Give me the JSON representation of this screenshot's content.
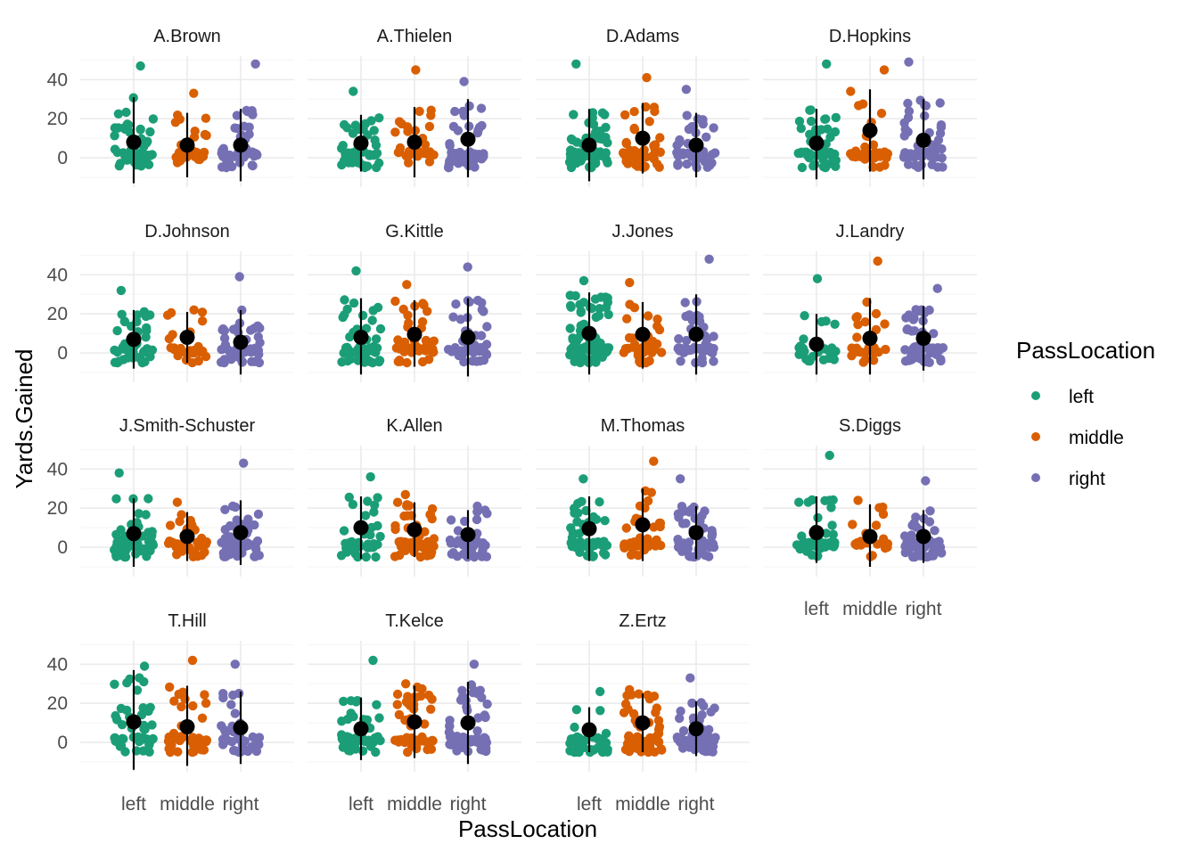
{
  "colors": {
    "left": "#1b9e77",
    "middle": "#d95f02",
    "right": "#7570b3",
    "summary": "#000000",
    "grid_major": "#ebebeb",
    "grid_minor": "#f5f5f5"
  },
  "chart_data": {
    "type": "scatter",
    "subtype": "faceted jittered strip plot with mean point and range line",
    "xlabel": "PassLocation",
    "ylabel": "Yards.Gained",
    "categories": [
      "left",
      "middle",
      "right"
    ],
    "ylim": [
      -15,
      52
    ],
    "yticks": [
      0,
      20,
      40
    ],
    "grid": true,
    "legend": {
      "title": "PassLocation",
      "placement": "right",
      "entries": [
        "left",
        "middle",
        "right"
      ]
    },
    "facets": [
      {
        "player": "A.Brown",
        "series": [
          {
            "location": "left",
            "mean": 8,
            "min": -13,
            "max": 31,
            "n": 55,
            "points_max": 47
          },
          {
            "location": "middle",
            "mean": 6.5,
            "min": -10,
            "max": 23,
            "n": 30,
            "points_max": 33
          },
          {
            "location": "right",
            "mean": 6.5,
            "min": -12,
            "max": 25,
            "n": 50,
            "points_max": 48
          }
        ]
      },
      {
        "player": "A.Thielen",
        "series": [
          {
            "location": "left",
            "mean": 7.5,
            "min": -7,
            "max": 22,
            "n": 55,
            "points_max": 34
          },
          {
            "location": "middle",
            "mean": 8,
            "min": -10,
            "max": 26,
            "n": 30,
            "points_max": 45
          },
          {
            "location": "right",
            "mean": 9.5,
            "min": -10,
            "max": 30,
            "n": 55,
            "points_max": 39
          }
        ]
      },
      {
        "player": "D.Adams",
        "series": [
          {
            "location": "left",
            "mean": 6.5,
            "min": -12,
            "max": 25,
            "n": 70,
            "points_max": 48
          },
          {
            "location": "middle",
            "mean": 10,
            "min": -8,
            "max": 28,
            "n": 40,
            "points_max": 41
          },
          {
            "location": "right",
            "mean": 6.5,
            "min": -10,
            "max": 23,
            "n": 45,
            "points_max": 35
          }
        ]
      },
      {
        "player": "D.Hopkins",
        "series": [
          {
            "location": "left",
            "mean": 7.5,
            "min": -11,
            "max": 25,
            "n": 50,
            "points_max": 48
          },
          {
            "location": "middle",
            "mean": 14,
            "min": -7,
            "max": 35,
            "n": 40,
            "points_max": 45
          },
          {
            "location": "right",
            "mean": 9,
            "min": -11,
            "max": 30,
            "n": 60,
            "points_max": 49
          }
        ]
      },
      {
        "player": "D.Johnson",
        "series": [
          {
            "location": "left",
            "mean": 7,
            "min": -8,
            "max": 22,
            "n": 50,
            "points_max": 32
          },
          {
            "location": "middle",
            "mean": 8,
            "min": -5,
            "max": 21,
            "n": 25,
            "points_max": 22
          },
          {
            "location": "right",
            "mean": 5.5,
            "min": -11,
            "max": 22,
            "n": 55,
            "points_max": 39
          }
        ]
      },
      {
        "player": "G.Kittle",
        "series": [
          {
            "location": "left",
            "mean": 8,
            "min": -11,
            "max": 28,
            "n": 50,
            "points_max": 42
          },
          {
            "location": "middle",
            "mean": 9.5,
            "min": -7,
            "max": 27,
            "n": 40,
            "points_max": 35
          },
          {
            "location": "right",
            "mean": 8,
            "min": -12,
            "max": 28,
            "n": 50,
            "points_max": 44
          }
        ]
      },
      {
        "player": "J.Jones",
        "series": [
          {
            "location": "left",
            "mean": 10,
            "min": -11,
            "max": 31,
            "n": 70,
            "points_max": 37
          },
          {
            "location": "middle",
            "mean": 9.5,
            "min": -8,
            "max": 26,
            "n": 45,
            "points_max": 36
          },
          {
            "location": "right",
            "mean": 9.5,
            "min": -11,
            "max": 30,
            "n": 45,
            "points_max": 48
          }
        ]
      },
      {
        "player": "J.Landry",
        "series": [
          {
            "location": "left",
            "mean": 4.5,
            "min": -11,
            "max": 20,
            "n": 30,
            "points_max": 38
          },
          {
            "location": "middle",
            "mean": 7.5,
            "min": -11,
            "max": 28,
            "n": 30,
            "points_max": 47
          },
          {
            "location": "right",
            "mean": 7.5,
            "min": -9,
            "max": 24,
            "n": 55,
            "points_max": 33
          }
        ]
      },
      {
        "player": "J.Smith-Schuster",
        "series": [
          {
            "location": "left",
            "mean": 7,
            "min": -10,
            "max": 25,
            "n": 50,
            "points_max": 38
          },
          {
            "location": "middle",
            "mean": 5.5,
            "min": -7,
            "max": 18,
            "n": 45,
            "points_max": 23
          },
          {
            "location": "right",
            "mean": 7.5,
            "min": -9,
            "max": 24,
            "n": 60,
            "points_max": 43
          }
        ]
      },
      {
        "player": "K.Allen",
        "series": [
          {
            "location": "left",
            "mean": 10,
            "min": -6,
            "max": 26,
            "n": 40,
            "points_max": 36
          },
          {
            "location": "middle",
            "mean": 9,
            "min": -5,
            "max": 23,
            "n": 55,
            "points_max": 27
          },
          {
            "location": "right",
            "mean": 6.5,
            "min": -6,
            "max": 19,
            "n": 40,
            "points_max": 21
          }
        ]
      },
      {
        "player": "M.Thomas",
        "series": [
          {
            "location": "left",
            "mean": 9.5,
            "min": -7,
            "max": 26,
            "n": 55,
            "points_max": 35
          },
          {
            "location": "middle",
            "mean": 11.5,
            "min": -7,
            "max": 30,
            "n": 40,
            "points_max": 44
          },
          {
            "location": "right",
            "mean": 7.5,
            "min": -6,
            "max": 21,
            "n": 60,
            "points_max": 35
          }
        ]
      },
      {
        "player": "S.Diggs",
        "series": [
          {
            "location": "left",
            "mean": 7.5,
            "min": -8,
            "max": 26,
            "n": 45,
            "points_max": 47
          },
          {
            "location": "middle",
            "mean": 5.5,
            "min": -10,
            "max": 22,
            "n": 20,
            "points_max": 24
          },
          {
            "location": "right",
            "mean": 5.5,
            "min": -8,
            "max": 19,
            "n": 55,
            "points_max": 34
          }
        ]
      },
      {
        "player": "T.Hill",
        "series": [
          {
            "location": "left",
            "mean": 10.5,
            "min": -14,
            "max": 37,
            "n": 50,
            "points_max": 39
          },
          {
            "location": "middle",
            "mean": 8,
            "min": -12,
            "max": 29,
            "n": 40,
            "points_max": 42
          },
          {
            "location": "right",
            "mean": 7.5,
            "min": -11,
            "max": 26,
            "n": 40,
            "points_max": 40
          }
        ]
      },
      {
        "player": "T.Kelce",
        "series": [
          {
            "location": "left",
            "mean": 7,
            "min": -9,
            "max": 23,
            "n": 50,
            "points_max": 42
          },
          {
            "location": "middle",
            "mean": 10.5,
            "min": -8,
            "max": 29,
            "n": 50,
            "points_max": 30
          },
          {
            "location": "right",
            "mean": 10,
            "min": -11,
            "max": 31,
            "n": 65,
            "points_max": 40
          }
        ]
      },
      {
        "player": "Z.Ertz",
        "series": [
          {
            "location": "left",
            "mean": 6.5,
            "min": -5,
            "max": 18,
            "n": 45,
            "points_max": 26
          },
          {
            "location": "middle",
            "mean": 10,
            "min": -5,
            "max": 25,
            "n": 60,
            "points_max": 27
          },
          {
            "location": "right",
            "mean": 7,
            "min": -7,
            "max": 21,
            "n": 65,
            "points_max": 33
          }
        ]
      }
    ]
  }
}
